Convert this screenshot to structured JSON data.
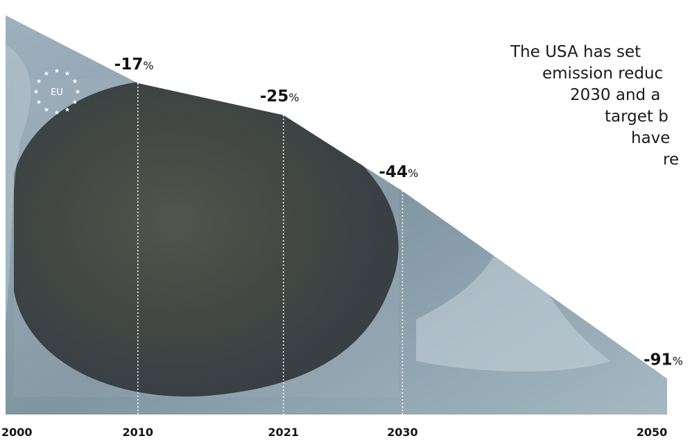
{
  "chart_data": {
    "type": "area",
    "x": [
      "2000",
      "2010",
      "2021",
      "2030",
      "2050"
    ],
    "values": [
      0,
      -17,
      -25,
      -44,
      -91
    ],
    "value_labels": [
      {
        "value": "-17",
        "unit": "%"
      },
      {
        "value": "-25",
        "unit": "%"
      },
      {
        "value": "-44",
        "unit": "%"
      },
      {
        "value": "-91",
        "unit": "%"
      }
    ],
    "tick_labels": [
      "2000",
      "2010",
      "2021",
      "2030",
      "2050"
    ],
    "title": "",
    "xlabel": "",
    "ylabel": "",
    "ylim": [
      -100,
      0
    ],
    "grid": false,
    "colors": {
      "fill_dark": "#3d4a4f",
      "fill_rock": "#4a4d49",
      "fill_water": "#8fa4b0",
      "text": "#141414"
    }
  },
  "badge": {
    "label": "EU",
    "icon": "eu-stars-icon"
  },
  "annotation": {
    "lines": [
      "The USA has set",
      "emission reduc",
      "2030 and a",
      "target b",
      "have",
      "re"
    ]
  }
}
